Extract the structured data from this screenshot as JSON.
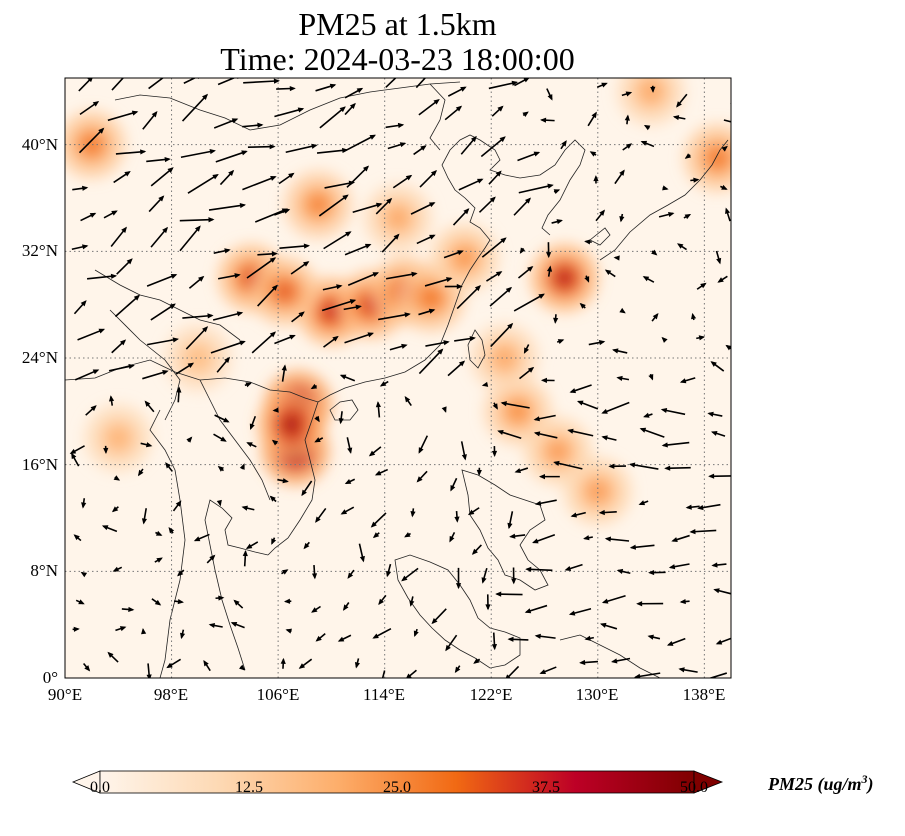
{
  "header": {
    "title_line1": "PM25 at 1.5km",
    "title_line2": "Time: 2024-03-23 18:00:00"
  },
  "map": {
    "extent": {
      "lon_min": 90,
      "lon_max": 140,
      "lat_min": 0,
      "lat_max": 45
    },
    "lat_ticks": [
      {
        "value": 0,
        "label": "0°"
      },
      {
        "value": 8,
        "label": "8°N"
      },
      {
        "value": 16,
        "label": "16°N"
      },
      {
        "value": 24,
        "label": "24°N"
      },
      {
        "value": 32,
        "label": "32°N"
      },
      {
        "value": 40,
        "label": "40°N"
      }
    ],
    "lon_ticks": [
      {
        "value": 90,
        "label": "90°E"
      },
      {
        "value": 98,
        "label": "98°E"
      },
      {
        "value": 106,
        "label": "106°E"
      },
      {
        "value": 114,
        "label": "114°E"
      },
      {
        "value": 122,
        "label": "122°E"
      },
      {
        "value": 130,
        "label": "130°E"
      },
      {
        "value": 138,
        "label": "138°E"
      }
    ],
    "gridlines": true,
    "gridline_style": "dotted",
    "background_color": "#fff5ea",
    "wind_vectors": true,
    "concentration_hotspots": [
      {
        "lon": 107.5,
        "lat": 20.5,
        "level": 50
      },
      {
        "lon": 107.3,
        "lat": 17.0,
        "level": 50
      },
      {
        "lon": 107.0,
        "lat": 19.0,
        "level": 45
      },
      {
        "lon": 110.0,
        "lat": 27.5,
        "level": 40
      },
      {
        "lon": 113.0,
        "lat": 28.0,
        "level": 38
      },
      {
        "lon": 115.5,
        "lat": 29.0,
        "level": 35
      },
      {
        "lon": 104.0,
        "lat": 30.0,
        "level": 35
      },
      {
        "lon": 106.5,
        "lat": 29.0,
        "level": 33
      },
      {
        "lon": 117.5,
        "lat": 28.5,
        "level": 30
      },
      {
        "lon": 127.5,
        "lat": 30.0,
        "level": 42
      },
      {
        "lon": 120.0,
        "lat": 31.5,
        "level": 25
      },
      {
        "lon": 109.0,
        "lat": 35.5,
        "level": 28
      },
      {
        "lon": 115.0,
        "lat": 34.5,
        "level": 22
      },
      {
        "lon": 124.0,
        "lat": 20.0,
        "level": 26
      },
      {
        "lon": 130.0,
        "lat": 14.0,
        "level": 24
      },
      {
        "lon": 127.0,
        "lat": 17.0,
        "level": 24
      },
      {
        "lon": 92.0,
        "lat": 40.0,
        "level": 30
      },
      {
        "lon": 139.0,
        "lat": 39.0,
        "level": 30
      },
      {
        "lon": 94.0,
        "lat": 18.0,
        "level": 20
      },
      {
        "lon": 100.0,
        "lat": 24.0,
        "level": 18
      },
      {
        "lon": 123.0,
        "lat": 24.0,
        "level": 22
      },
      {
        "lon": 134.0,
        "lat": 44.0,
        "level": 22
      }
    ]
  },
  "colorbar": {
    "ticks": [
      "0.0",
      "12.5",
      "25.0",
      "37.5",
      "50.0"
    ],
    "label": "PM25 (ug/m",
    "label_sup": "3",
    "label_close": ")",
    "colors": [
      "#fff5eb",
      "#fdd2a5",
      "#fd9243",
      "#df5005",
      "#a63603",
      "#7f0000"
    ],
    "extend": "both"
  }
}
